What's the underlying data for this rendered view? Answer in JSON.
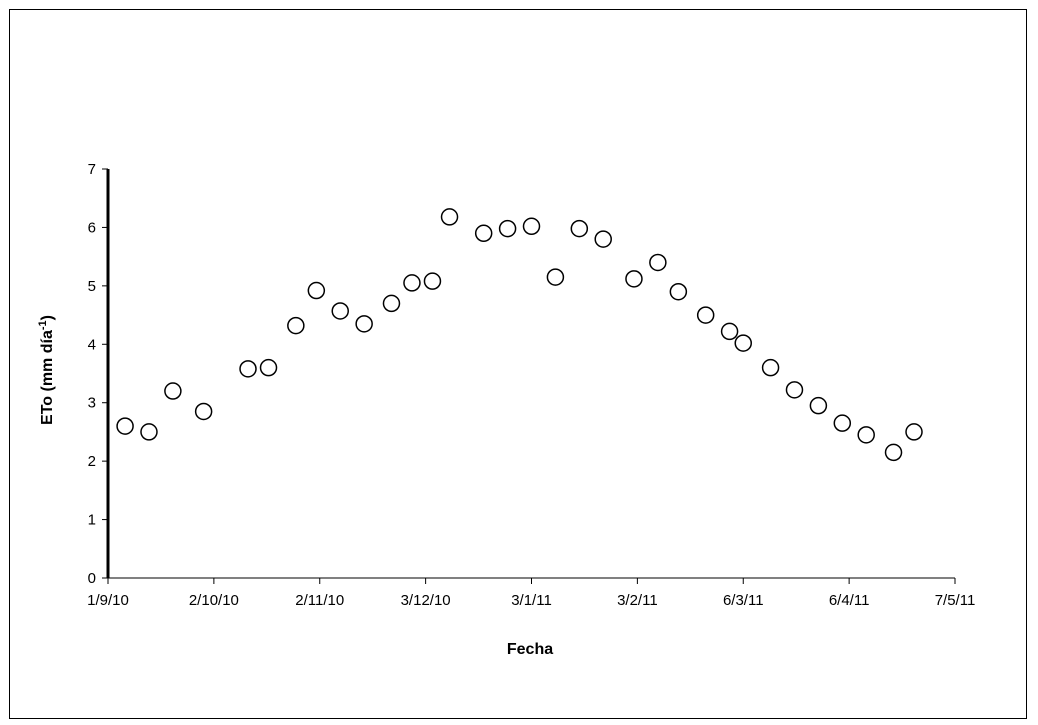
{
  "chart_data": {
    "type": "scatter",
    "title": "",
    "xlabel": "Fecha",
    "ylabel_main": "ETo (mm día",
    "ylabel_sup": "-1",
    "ylabel_close": ")",
    "xlim": [
      "2010-09-01",
      "2011-05-07"
    ],
    "ylim": [
      0,
      7
    ],
    "x_ticks": [
      "2010-09-01",
      "2010-10-02",
      "2010-11-02",
      "2010-12-03",
      "2011-01-03",
      "2011-02-03",
      "2011-03-06",
      "2011-04-06",
      "2011-05-07"
    ],
    "x_tick_labels": [
      "1/9/10",
      "2/10/10",
      "2/11/10",
      "3/12/10",
      "3/1/11",
      "3/2/11",
      "6/3/11",
      "6/4/11",
      "7/5/11"
    ],
    "y_ticks": [
      0,
      1,
      2,
      3,
      4,
      5,
      6,
      7
    ],
    "grid": false,
    "legend": "none",
    "marker": "open-circle",
    "series": [
      {
        "points": [
          {
            "x": "2010-09-06",
            "y": 2.6
          },
          {
            "x": "2010-09-13",
            "y": 2.5
          },
          {
            "x": "2010-09-20",
            "y": 3.2
          },
          {
            "x": "2010-09-29",
            "y": 2.85
          },
          {
            "x": "2010-10-12",
            "y": 3.58
          },
          {
            "x": "2010-10-18",
            "y": 3.6
          },
          {
            "x": "2010-10-26",
            "y": 4.32
          },
          {
            "x": "2010-11-01",
            "y": 4.92
          },
          {
            "x": "2010-11-08",
            "y": 4.57
          },
          {
            "x": "2010-11-15",
            "y": 4.35
          },
          {
            "x": "2010-11-23",
            "y": 4.7
          },
          {
            "x": "2010-11-29",
            "y": 5.05
          },
          {
            "x": "2010-12-05",
            "y": 5.08
          },
          {
            "x": "2010-12-10",
            "y": 6.18
          },
          {
            "x": "2010-12-20",
            "y": 5.9
          },
          {
            "x": "2010-12-27",
            "y": 5.98
          },
          {
            "x": "2011-01-03",
            "y": 6.02
          },
          {
            "x": "2011-01-10",
            "y": 5.15
          },
          {
            "x": "2011-01-17",
            "y": 5.98
          },
          {
            "x": "2011-01-24",
            "y": 5.8
          },
          {
            "x": "2011-02-02",
            "y": 5.12
          },
          {
            "x": "2011-02-09",
            "y": 5.4
          },
          {
            "x": "2011-02-15",
            "y": 4.9
          },
          {
            "x": "2011-02-23",
            "y": 4.5
          },
          {
            "x": "2011-03-02",
            "y": 4.22
          },
          {
            "x": "2011-03-06",
            "y": 4.02
          },
          {
            "x": "2011-03-14",
            "y": 3.6
          },
          {
            "x": "2011-03-21",
            "y": 3.22
          },
          {
            "x": "2011-03-28",
            "y": 2.95
          },
          {
            "x": "2011-04-04",
            "y": 2.65
          },
          {
            "x": "2011-04-11",
            "y": 2.45
          },
          {
            "x": "2011-04-19",
            "y": 2.15
          },
          {
            "x": "2011-04-25",
            "y": 2.5
          }
        ]
      }
    ]
  }
}
